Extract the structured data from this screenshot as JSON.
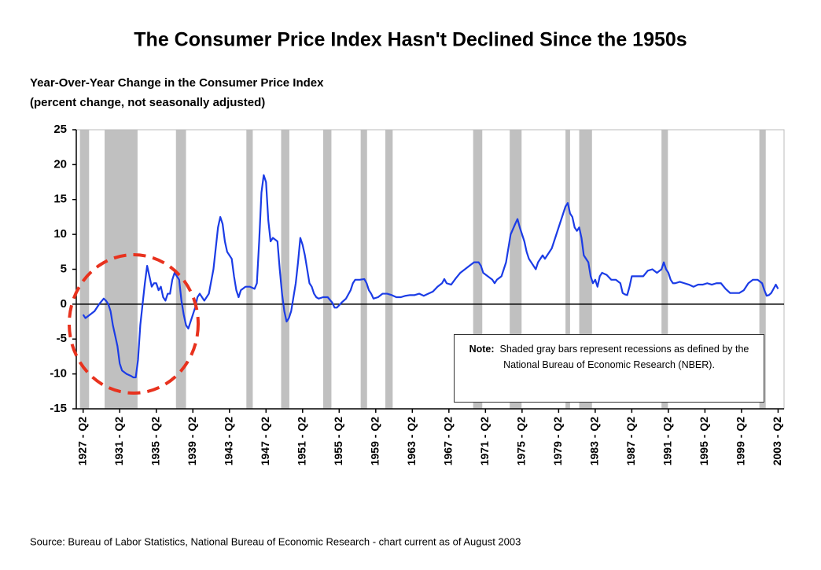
{
  "chart_data": {
    "type": "line",
    "title": "The Consumer Price Index Hasn't Declined Since the 1950s",
    "subtitle": "Year-Over-Year Change in the Consumer Price Index",
    "y_label": "(percent change, not seasonally adjusted)",
    "note_label": "Note:",
    "note": "Shaded gray bars represent recessions as defined by the National  Bureau of Economic Research (NBER).",
    "source": "Source:  Bureau of Labor Statistics, National Bureau of Economic Research - chart current as of August 2003",
    "color": "#1b3ce6",
    "recession_color": "#c0c0c0",
    "xlim": [
      1926.5,
      2003.9
    ],
    "ylim": [
      -15,
      25
    ],
    "yticks": [
      -15,
      -10,
      -5,
      0,
      5,
      10,
      15,
      20,
      25
    ],
    "xticks": [
      {
        "value": 1927.25,
        "label": "1927 - Q2"
      },
      {
        "value": 1931.25,
        "label": "1931 - Q2"
      },
      {
        "value": 1935.25,
        "label": "1935 - Q2"
      },
      {
        "value": 1939.25,
        "label": "1939 - Q2"
      },
      {
        "value": 1943.25,
        "label": "1943 - Q2"
      },
      {
        "value": 1947.25,
        "label": "1947 - Q2"
      },
      {
        "value": 1951.25,
        "label": "1951 - Q2"
      },
      {
        "value": 1955.25,
        "label": "1955 - Q2"
      },
      {
        "value": 1959.25,
        "label": "1959 - Q2"
      },
      {
        "value": 1963.25,
        "label": "1963 - Q2"
      },
      {
        "value": 1967.25,
        "label": "1967 - Q2"
      },
      {
        "value": 1971.25,
        "label": "1971 - Q2"
      },
      {
        "value": 1975.25,
        "label": "1975 - Q2"
      },
      {
        "value": 1979.25,
        "label": "1979 - Q2"
      },
      {
        "value": 1983.25,
        "label": "1983 - Q2"
      },
      {
        "value": 1987.25,
        "label": "1987 - Q2"
      },
      {
        "value": 1991.25,
        "label": "1991 - Q2"
      },
      {
        "value": 1995.25,
        "label": "1995 - Q2"
      },
      {
        "value": 1999.25,
        "label": "1999 - Q2"
      },
      {
        "value": 2003.25,
        "label": "2003 - Q2"
      }
    ],
    "recessions": [
      [
        1926.9,
        1927.9
      ],
      [
        1929.6,
        1933.2
      ],
      [
        1937.4,
        1938.5
      ],
      [
        1945.1,
        1945.8
      ],
      [
        1948.9,
        1949.8
      ],
      [
        1953.5,
        1954.4
      ],
      [
        1957.6,
        1958.3
      ],
      [
        1960.3,
        1961.1
      ],
      [
        1969.9,
        1970.9
      ],
      [
        1973.9,
        1975.2
      ],
      [
        1980.0,
        1980.5
      ],
      [
        1981.5,
        1982.9
      ],
      [
        1990.5,
        1991.2
      ],
      [
        2001.2,
        2001.9
      ]
    ],
    "x": [
      1927.25,
      1927.5,
      1928,
      1928.5,
      1929,
      1929.5,
      1929.75,
      1930,
      1930.25,
      1930.5,
      1930.75,
      1931,
      1931.25,
      1931.5,
      1932,
      1932.5,
      1932.75,
      1933,
      1933.25,
      1933.5,
      1933.75,
      1934,
      1934.25,
      1934.5,
      1934.75,
      1935,
      1935.25,
      1935.5,
      1935.75,
      1936,
      1936.25,
      1936.5,
      1936.75,
      1937,
      1937.25,
      1937.5,
      1937.75,
      1938,
      1938.25,
      1938.5,
      1938.75,
      1939,
      1939.25,
      1939.5,
      1939.75,
      1940,
      1940.5,
      1941,
      1941.5,
      1942,
      1942.25,
      1942.5,
      1942.75,
      1943,
      1943.5,
      1943.75,
      1944,
      1944.25,
      1944.5,
      1945,
      1945.5,
      1946,
      1946.25,
      1946.5,
      1946.75,
      1947,
      1947.25,
      1947.5,
      1947.75,
      1948,
      1948.5,
      1948.75,
      1949,
      1949.25,
      1949.5,
      1949.75,
      1950,
      1950.25,
      1950.5,
      1950.75,
      1951,
      1951.25,
      1951.5,
      1951.75,
      1952,
      1952.25,
      1952.5,
      1952.75,
      1953,
      1953.5,
      1954,
      1954.5,
      1954.75,
      1955,
      1955.5,
      1956,
      1956.5,
      1956.75,
      1957,
      1957.5,
      1958,
      1958.25,
      1958.5,
      1958.75,
      1959,
      1959.5,
      1960,
      1960.5,
      1961,
      1961.5,
      1962,
      1962.5,
      1963,
      1963.5,
      1964,
      1964.5,
      1965,
      1965.5,
      1966,
      1966.5,
      1966.75,
      1967,
      1967.5,
      1968,
      1968.5,
      1969,
      1969.5,
      1970,
      1970.5,
      1970.75,
      1971,
      1971.5,
      1972,
      1972.25,
      1972.5,
      1973,
      1973.5,
      1973.75,
      1974,
      1974.5,
      1974.75,
      1975,
      1975.5,
      1975.75,
      1976,
      1976.5,
      1976.75,
      1977,
      1977.5,
      1977.75,
      1978,
      1978.5,
      1979,
      1979.5,
      1980,
      1980.25,
      1980.5,
      1980.75,
      1981,
      1981.25,
      1981.5,
      1981.75,
      1982,
      1982.5,
      1982.75,
      1983,
      1983.25,
      1983.5,
      1983.75,
      1984,
      1984.5,
      1985,
      1985.5,
      1986,
      1986.25,
      1986.5,
      1986.75,
      1987,
      1987.25,
      1987.5,
      1988,
      1988.5,
      1989,
      1989.5,
      1990,
      1990.5,
      1990.75,
      1991,
      1991.25,
      1991.5,
      1991.75,
      1992,
      1992.5,
      1993,
      1993.5,
      1994,
      1994.5,
      1995,
      1995.5,
      1996,
      1996.5,
      1997,
      1997.5,
      1998,
      1998.5,
      1999,
      1999.5,
      2000,
      2000.5,
      2001,
      2001.5,
      2001.75,
      2002,
      2002.25,
      2002.5,
      2002.75,
      2003,
      2003.25
    ],
    "values": [
      -1.5,
      -2,
      -1.5,
      -1,
      0,
      0.8,
      0.5,
      0,
      -1,
      -3,
      -4.5,
      -6,
      -8.5,
      -9.5,
      -10,
      -10.3,
      -10.5,
      -10.5,
      -8,
      -3,
      0,
      3,
      5.5,
      4,
      2.5,
      3,
      3,
      2,
      2.5,
      1,
      0.5,
      1.5,
      1.5,
      3.5,
      4.5,
      4,
      3.5,
      0.5,
      -1.5,
      -3,
      -3.5,
      -2.5,
      -1.5,
      -0.5,
      1,
      1.5,
      0.5,
      1.5,
      5,
      11,
      12.5,
      11.5,
      9,
      7.5,
      6.5,
      4,
      2,
      1,
      2,
      2.5,
      2.5,
      2.2,
      3,
      9,
      16,
      18.5,
      17.5,
      12,
      9,
      9.5,
      9,
      5,
      1.5,
      -1,
      -2.5,
      -2,
      -1,
      1,
      3,
      6,
      9.5,
      8.5,
      7,
      5,
      3,
      2.5,
      1.5,
      1,
      0.8,
      1,
      1,
      0.2,
      -0.5,
      -0.5,
      0.2,
      0.8,
      2,
      3,
      3.5,
      3.5,
      3.6,
      3,
      2,
      1.5,
      0.8,
      1,
      1.5,
      1.5,
      1.3,
      1,
      1,
      1.2,
      1.3,
      1.3,
      1.5,
      1.2,
      1.5,
      1.8,
      2.5,
      3,
      3.6,
      3,
      2.8,
      3.7,
      4.5,
      5,
      5.5,
      6,
      6,
      5.5,
      4.5,
      4,
      3.5,
      3,
      3.5,
      4,
      6,
      8,
      10,
      11.5,
      12.2,
      11,
      9,
      7.5,
      6.5,
      5.5,
      5,
      6,
      7,
      6.5,
      7,
      8,
      10,
      12,
      14,
      14.5,
      13,
      12.5,
      11,
      10.5,
      11,
      9.5,
      7,
      6,
      4,
      3,
      3.5,
      2.5,
      4,
      4.5,
      4.2,
      3.5,
      3.5,
      3,
      1.6,
      1.4,
      1.3,
      2.5,
      4,
      4,
      4,
      4,
      4.8,
      5,
      4.5,
      5,
      6,
      5,
      4.5,
      3.5,
      3,
      3,
      3.2,
      3,
      2.8,
      2.5,
      2.8,
      2.8,
      3,
      2.8,
      3,
      3,
      2.2,
      1.6,
      1.6,
      1.6,
      2,
      3,
      3.5,
      3.5,
      3,
      2,
      1.2,
      1.3,
      1.6,
      2.2,
      2.8,
      2.2
    ]
  }
}
